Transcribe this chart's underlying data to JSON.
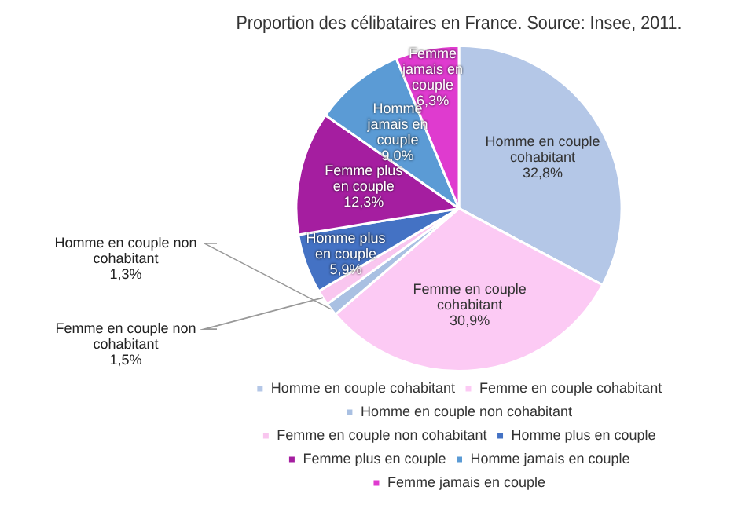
{
  "chart_data": {
    "type": "pie",
    "title": "Proportion des célibataires en France. Source: Insee, 2011.",
    "categories": [
      "Homme en couple cohabitant",
      "Femme en couple cohabitant",
      "Homme en couple non cohabitant",
      "Femme en couple non cohabitant",
      "Homme plus en couple",
      "Femme plus en couple",
      "Homme jamais en couple",
      "Femme jamais en couple"
    ],
    "values": [
      32.8,
      30.9,
      1.3,
      1.5,
      5.9,
      12.3,
      9.0,
      6.3
    ],
    "value_labels": [
      "32,8%",
      "30,9%",
      "1,3%",
      "1,5%",
      "5,9%",
      "12,3%",
      "9,0%",
      "6,3%"
    ],
    "colors": [
      "#b4c7e7",
      "#fccaf4",
      "#a9c0e2",
      "#f9c6ef",
      "#4472c4",
      "#a51ea0",
      "#5b9bd5",
      "#df3bcf"
    ],
    "legend": "bottom"
  }
}
